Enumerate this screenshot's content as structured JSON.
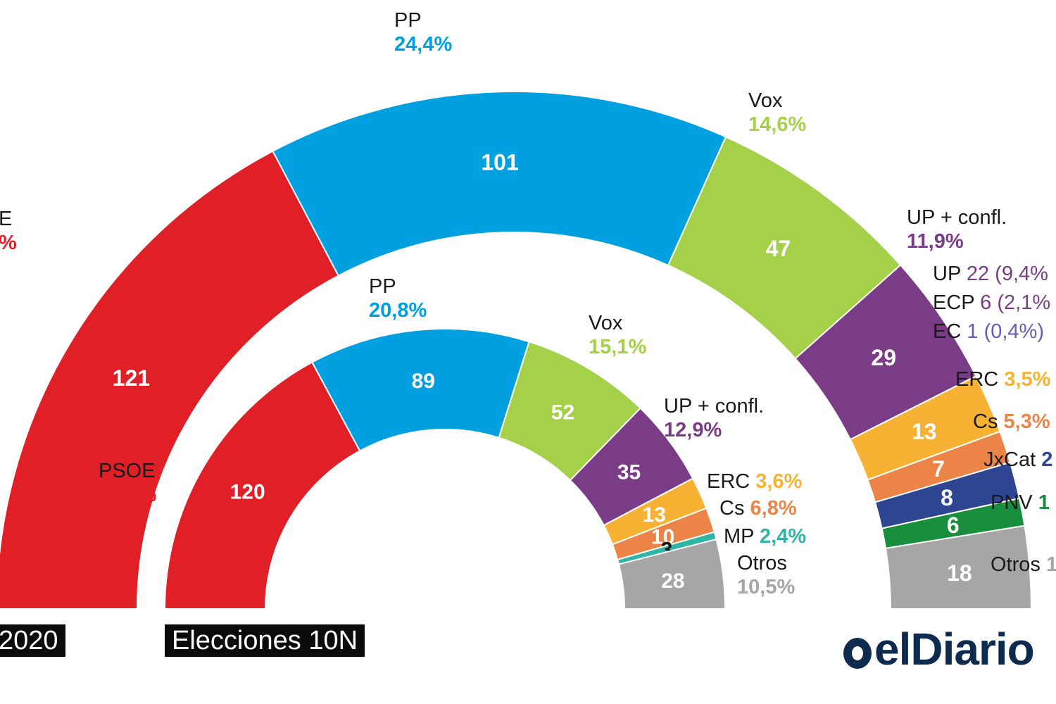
{
  "chart_data": [
    {
      "type": "pie",
      "subtype": "parliament-hemicycle",
      "title": "2020",
      "series": [
        {
          "name": "PSOE",
          "value": 121,
          "share": "",
          "color": "#e01f26"
        },
        {
          "name": "PP",
          "value": 101,
          "share": "24,4%",
          "color": "#00a0e0"
        },
        {
          "name": "Vox",
          "value": 47,
          "share": "14,6%",
          "color": "#a4d04a"
        },
        {
          "name": "UP + confl.",
          "value": 29,
          "share": "11,9%",
          "color": "#7b3c87"
        },
        {
          "name": "ERC",
          "value": 13,
          "share": "3,5%",
          "color": "#f7b233"
        },
        {
          "name": "Cs",
          "value": 7,
          "share": "5,3%",
          "color": "#ec8447"
        },
        {
          "name": "JxCat",
          "value": 8,
          "share": "",
          "color": "#2e4592"
        },
        {
          "name": "PNV",
          "value": 6,
          "share": "",
          "color": "#178f3d"
        },
        {
          "name": "Otros",
          "value": 18,
          "share": "",
          "color": "#a6a6a6"
        }
      ],
      "breakdown": [
        {
          "name": "UP",
          "seats": "22",
          "share": "(9,4%"
        },
        {
          "name": "ECP",
          "seats": "6",
          "share": "(2,1%"
        },
        {
          "name": "EC",
          "seats": "1",
          "share": "(0,4%)"
        }
      ],
      "labels": {
        "psoe_pct_fragment": "%",
        "psoe_name_fragment": "E",
        "jxcat_fragment": "2",
        "pnv_fragment": "1",
        "otros_fragment": "1"
      }
    },
    {
      "type": "pie",
      "subtype": "parliament-hemicycle",
      "title": "Elecciones 10N",
      "series": [
        {
          "name": "PSOE",
          "value": 120,
          "share": "28,0%",
          "color": "#e01f26"
        },
        {
          "name": "PP",
          "value": 89,
          "share": "20,8%",
          "color": "#00a0e0"
        },
        {
          "name": "Vox",
          "value": 52,
          "share": "15,1%",
          "color": "#a4d04a"
        },
        {
          "name": "UP + confl.",
          "value": 35,
          "share": "12,9%",
          "color": "#7b3c87"
        },
        {
          "name": "ERC",
          "value": 13,
          "share": "3,6%",
          "color": "#f7b233"
        },
        {
          "name": "Cs",
          "value": 10,
          "share": "6,8%",
          "color": "#ec8447"
        },
        {
          "name": "MP",
          "value": 3,
          "share": "2,4%",
          "color": "#2fb6a7"
        },
        {
          "name": "Otros",
          "value": 28,
          "share": "10,5%",
          "color": "#a6a6a6"
        }
      ]
    }
  ],
  "logo": {
    "text": "elDiario"
  }
}
